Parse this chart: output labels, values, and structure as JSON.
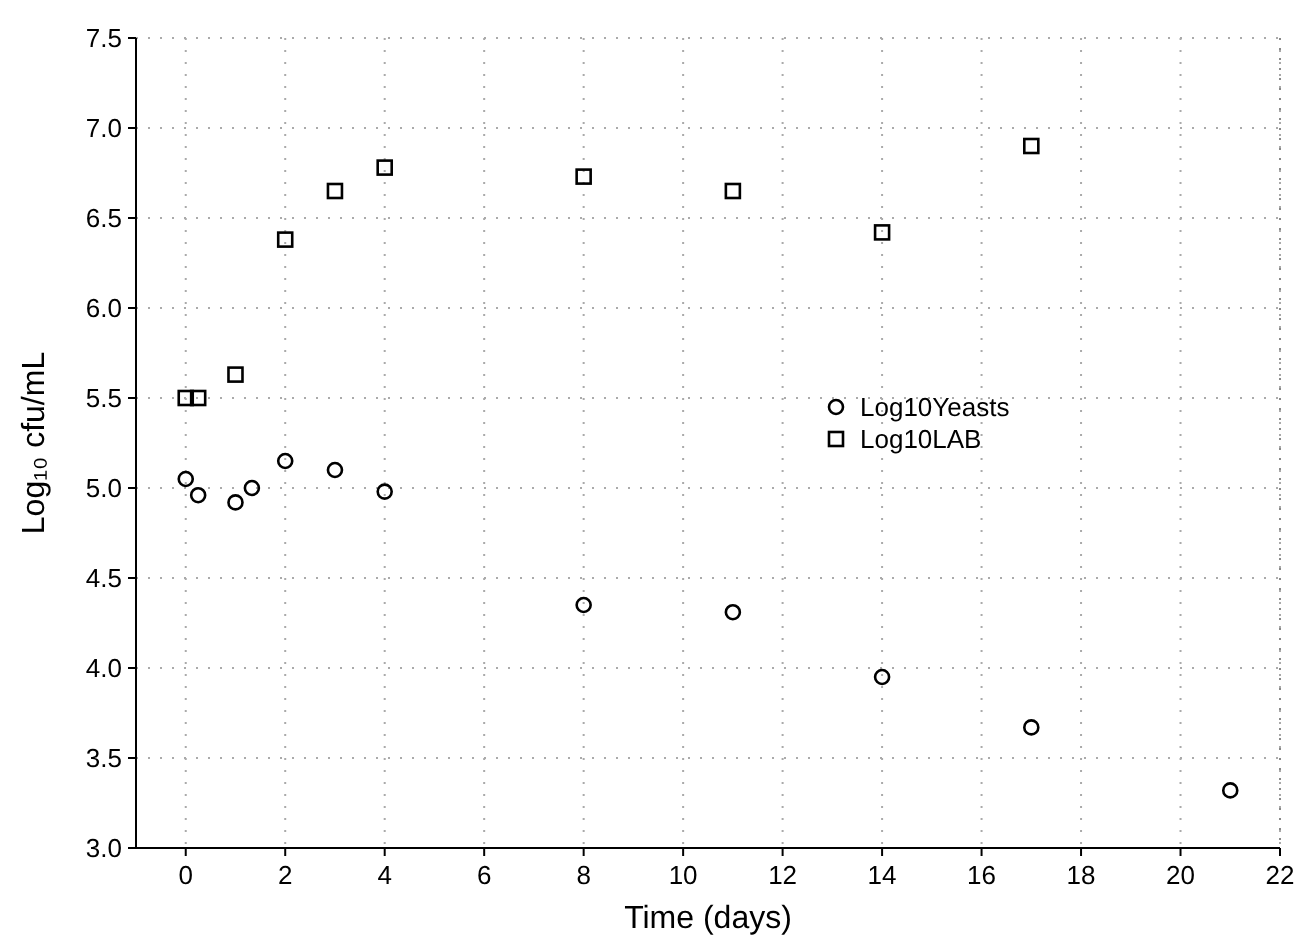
{
  "chart_data": {
    "type": "scatter",
    "xlabel": "Time (days)",
    "ylabel": "Log₁₀ cfu/mL",
    "xlim": [
      -1,
      22
    ],
    "xticks": [
      0,
      2,
      4,
      6,
      8,
      10,
      12,
      14,
      16,
      18,
      20,
      22
    ],
    "ylim": [
      3,
      7.5
    ],
    "yticks": [
      {
        "value": 3,
        "label": "3.0"
      },
      {
        "value": 3.5,
        "label": "3.5"
      },
      {
        "value": 4,
        "label": "4.0"
      },
      {
        "value": 4.5,
        "label": "4.5"
      },
      {
        "value": 5,
        "label": "5.0"
      },
      {
        "value": 5.5,
        "label": "5.5"
      },
      {
        "value": 6,
        "label": "6.0"
      },
      {
        "value": 6.5,
        "label": "6.5"
      },
      {
        "value": 7,
        "label": "7.0"
      },
      {
        "value": 7.5,
        "label": "7.5"
      }
    ],
    "grid": true,
    "legend": "right",
    "series": [
      {
        "name": "Log10Yeasts",
        "color": "#000000",
        "marker": "circle",
        "x": [
          0,
          0.25,
          1,
          1.33,
          2,
          3,
          4,
          8,
          11,
          14,
          17,
          21
        ],
        "values": [
          5.05,
          4.96,
          4.92,
          5.0,
          5.15,
          5.1,
          4.98,
          4.35,
          4.31,
          3.95,
          3.67,
          3.32
        ]
      },
      {
        "name": "Log10LAB",
        "color": "#000000",
        "marker": "square",
        "x": [
          0,
          0.25,
          1,
          2,
          3,
          4,
          8,
          11,
          14,
          17
        ],
        "values": [
          5.5,
          5.5,
          5.63,
          6.38,
          6.65,
          6.78,
          6.73,
          6.65,
          6.42,
          6.9
        ]
      }
    ]
  }
}
